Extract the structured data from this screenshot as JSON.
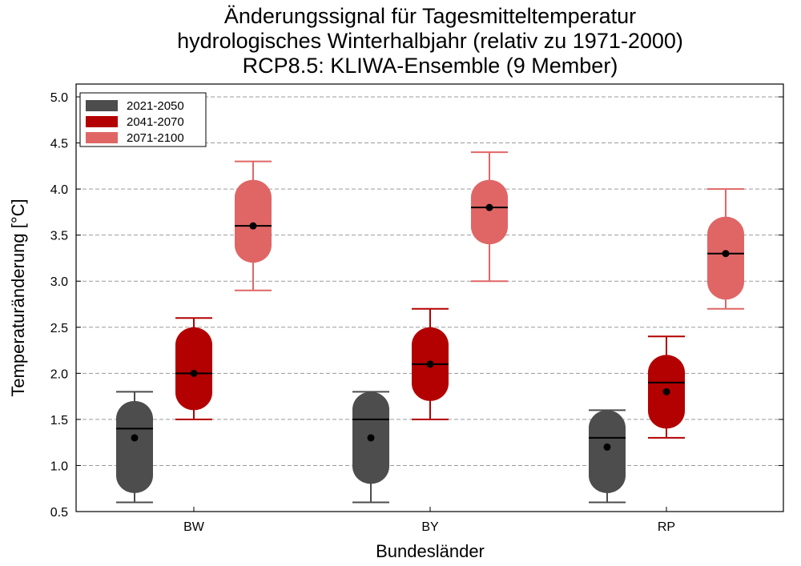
{
  "chart_data": {
    "type": "box",
    "title_lines": [
      "Änderungssignal für Tagesmitteltemperatur",
      "hydrologisches Winterhalbjahr (relativ zu 1971-2000)",
      "RCP8.5: KLIWA-Ensemble (9 Member)"
    ],
    "xlabel": "Bundesländer",
    "ylabel": "Temperaturänderung [°C]",
    "ylim": [
      0.5,
      5.0
    ],
    "yticks": [
      "0.5",
      "1.0",
      "1.5",
      "2.0",
      "2.5",
      "3.0",
      "3.5",
      "4.0",
      "4.5",
      "5.0"
    ],
    "categories": [
      "BW",
      "BY",
      "RP"
    ],
    "legend_position": "top-left",
    "grid": "horizontal dashed",
    "series": [
      {
        "name": "2021-2050",
        "color": "#4d4d4d",
        "boxes": [
          {
            "min": 0.6,
            "q1": 0.7,
            "median": 1.4,
            "q3": 1.7,
            "max": 1.8,
            "mean": 1.3
          },
          {
            "min": 0.6,
            "q1": 0.8,
            "median": 1.5,
            "q3": 1.8,
            "max": 1.8,
            "mean": 1.3
          },
          {
            "min": 0.6,
            "q1": 0.7,
            "median": 1.3,
            "q3": 1.6,
            "max": 1.6,
            "mean": 1.2
          }
        ]
      },
      {
        "name": "2041-2070",
        "color": "#b30000",
        "boxes": [
          {
            "min": 1.5,
            "q1": 1.6,
            "median": 2.0,
            "q3": 2.5,
            "max": 2.6,
            "mean": 2.0
          },
          {
            "min": 1.5,
            "q1": 1.7,
            "median": 2.1,
            "q3": 2.5,
            "max": 2.7,
            "mean": 2.1
          },
          {
            "min": 1.3,
            "q1": 1.4,
            "median": 1.9,
            "q3": 2.2,
            "max": 2.4,
            "mean": 1.8
          }
        ]
      },
      {
        "name": "2071-2100",
        "color": "#e06666",
        "boxes": [
          {
            "min": 2.9,
            "q1": 3.2,
            "median": 3.6,
            "q3": 4.1,
            "max": 4.3,
            "mean": 3.6
          },
          {
            "min": 3.0,
            "q1": 3.4,
            "median": 3.8,
            "q3": 4.1,
            "max": 4.4,
            "mean": 3.8
          },
          {
            "min": 2.7,
            "q1": 2.8,
            "median": 3.3,
            "q3": 3.7,
            "max": 4.0,
            "mean": 3.3
          }
        ]
      }
    ]
  }
}
